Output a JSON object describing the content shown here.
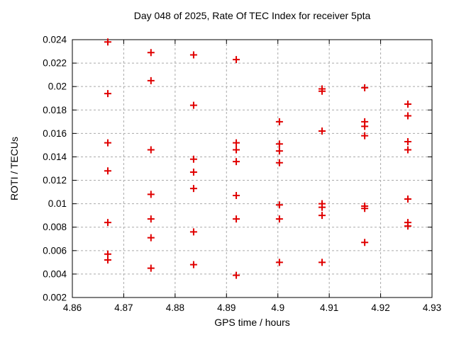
{
  "chart_data": {
    "type": "scatter",
    "title": "Day 048 of 2025, Rate Of TEC Index for receiver 5pta",
    "xlabel": "GPS time / hours",
    "ylabel": "ROTI / TECUs",
    "xlim": [
      4.86,
      4.93
    ],
    "ylim": [
      0.002,
      0.024
    ],
    "grid": true,
    "legend": "none",
    "marker": "plus",
    "marker_color": "#e00000",
    "axis_color": "#000000",
    "grid_color": "#aaaaaa",
    "x_ticks": [
      4.86,
      4.87,
      4.88,
      4.89,
      4.9,
      4.91,
      4.92,
      4.93
    ],
    "x_tick_labels": [
      "4.86",
      "4.87",
      "4.88",
      "4.89",
      "4.9",
      "4.91",
      "4.92",
      "4.93"
    ],
    "y_ticks": [
      0.002,
      0.004,
      0.006,
      0.008,
      0.01,
      0.012,
      0.014,
      0.016,
      0.018,
      0.02,
      0.022,
      0.024
    ],
    "y_tick_labels": [
      "0.002",
      "0.004",
      "0.006",
      "0.008",
      "0.01",
      "0.012",
      "0.014",
      "0.016",
      "0.018",
      "0.02",
      "0.022",
      "0.024"
    ],
    "points": [
      [
        4.8669,
        0.0238
      ],
      [
        4.8669,
        0.0194
      ],
      [
        4.8669,
        0.0152
      ],
      [
        4.8669,
        0.0128
      ],
      [
        4.8669,
        0.0084
      ],
      [
        4.8669,
        0.0057
      ],
      [
        4.8669,
        0.0052
      ],
      [
        4.8753,
        0.0229
      ],
      [
        4.8753,
        0.0205
      ],
      [
        4.8753,
        0.0146
      ],
      [
        4.8753,
        0.0108
      ],
      [
        4.8753,
        0.0087
      ],
      [
        4.8753,
        0.0071
      ],
      [
        4.8753,
        0.0045
      ],
      [
        4.8836,
        0.0227
      ],
      [
        4.8836,
        0.0184
      ],
      [
        4.8836,
        0.0138
      ],
      [
        4.8836,
        0.0127
      ],
      [
        4.8836,
        0.0113
      ],
      [
        4.8836,
        0.0076
      ],
      [
        4.8836,
        0.0048
      ],
      [
        4.8919,
        0.0223
      ],
      [
        4.8919,
        0.0152
      ],
      [
        4.8919,
        0.0146
      ],
      [
        4.8919,
        0.0136
      ],
      [
        4.8919,
        0.0107
      ],
      [
        4.8919,
        0.0087
      ],
      [
        4.8919,
        0.0039
      ],
      [
        4.9003,
        0.017
      ],
      [
        4.9003,
        0.0151
      ],
      [
        4.9003,
        0.0145
      ],
      [
        4.9003,
        0.0135
      ],
      [
        4.9003,
        0.0099
      ],
      [
        4.9003,
        0.0087
      ],
      [
        4.9003,
        0.005
      ],
      [
        4.9086,
        0.0198
      ],
      [
        4.9086,
        0.0196
      ],
      [
        4.9086,
        0.0162
      ],
      [
        4.9086,
        0.01
      ],
      [
        4.9086,
        0.0097
      ],
      [
        4.9086,
        0.009
      ],
      [
        4.9086,
        0.005
      ],
      [
        4.9169,
        0.0199
      ],
      [
        4.9169,
        0.017
      ],
      [
        4.9169,
        0.0166
      ],
      [
        4.9169,
        0.0158
      ],
      [
        4.9169,
        0.0098
      ],
      [
        4.9169,
        0.0096
      ],
      [
        4.9169,
        0.0067
      ],
      [
        4.9253,
        0.0185
      ],
      [
        4.9253,
        0.0175
      ],
      [
        4.9253,
        0.0153
      ],
      [
        4.9253,
        0.0146
      ],
      [
        4.9253,
        0.0104
      ],
      [
        4.9253,
        0.0084
      ],
      [
        4.9253,
        0.0081
      ]
    ]
  }
}
